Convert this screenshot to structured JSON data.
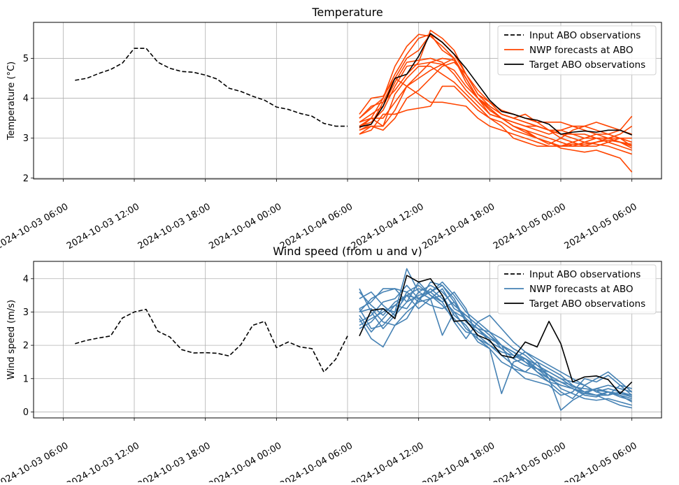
{
  "chart_data": [
    {
      "type": "line",
      "title": "Temperature",
      "xlabel": "",
      "ylabel": "Temperature (°C)",
      "ylim": [
        1.98,
        5.9
      ],
      "yticks": [
        2,
        3,
        4,
        5
      ],
      "xlim": [
        "2024-10-03 03:30",
        "2024-10-05 08:30"
      ],
      "xticks": [
        "2024-10-03 06:00",
        "2024-10-03 12:00",
        "2024-10-03 18:00",
        "2024-10-04 00:00",
        "2024-10-04 06:00",
        "2024-10-04 12:00",
        "2024-10-04 18:00",
        "2024-10-05 00:00",
        "2024-10-05 06:00"
      ],
      "grid": true,
      "legend_position": "top-right",
      "legend": [
        "Input ABO observations",
        "NWP forecasts at ABO",
        "Target ABO observations"
      ],
      "colors": {
        "input": "#000000",
        "nwp": "#ff4500",
        "target": "#000000"
      },
      "input": {
        "name": "Input ABO observations",
        "x": [
          "2024-10-03 07:00",
          "2024-10-03 08:00",
          "2024-10-03 09:00",
          "2024-10-03 10:00",
          "2024-10-03 11:00",
          "2024-10-03 12:00",
          "2024-10-03 13:00",
          "2024-10-03 14:00",
          "2024-10-03 15:00",
          "2024-10-03 16:00",
          "2024-10-03 17:00",
          "2024-10-03 18:00",
          "2024-10-03 19:00",
          "2024-10-03 20:00",
          "2024-10-03 21:00",
          "2024-10-03 22:00",
          "2024-10-03 23:00",
          "2024-10-04 00:00",
          "2024-10-04 01:00",
          "2024-10-04 02:00",
          "2024-10-04 03:00",
          "2024-10-04 04:00",
          "2024-10-04 05:00",
          "2024-10-04 06:00"
        ],
        "y": [
          4.45,
          4.5,
          4.62,
          4.72,
          4.88,
          5.25,
          5.25,
          4.9,
          4.75,
          4.67,
          4.65,
          4.58,
          4.48,
          4.25,
          4.17,
          4.05,
          3.95,
          3.78,
          3.72,
          3.62,
          3.55,
          3.37,
          3.3,
          3.3
        ]
      },
      "target": {
        "name": "Target ABO observations",
        "x": [
          "2024-10-04 07:00",
          "2024-10-04 08:00",
          "2024-10-04 09:00",
          "2024-10-04 10:00",
          "2024-10-04 11:00",
          "2024-10-04 12:00",
          "2024-10-04 13:00",
          "2024-10-04 14:00",
          "2024-10-04 15:00",
          "2024-10-04 16:00",
          "2024-10-04 17:00",
          "2024-10-04 18:00",
          "2024-10-04 19:00",
          "2024-10-04 20:00",
          "2024-10-04 21:00",
          "2024-10-04 22:00",
          "2024-10-04 23:00",
          "2024-10-05 00:00",
          "2024-10-05 01:00",
          "2024-10-05 02:00",
          "2024-10-05 03:00",
          "2024-10-05 04:00",
          "2024-10-05 05:00",
          "2024-10-05 06:00"
        ],
        "y": [
          3.28,
          3.35,
          3.8,
          4.5,
          4.6,
          5.05,
          5.62,
          5.4,
          5.1,
          4.75,
          4.35,
          3.95,
          3.67,
          3.6,
          3.5,
          3.45,
          3.35,
          3.1,
          3.15,
          3.18,
          3.15,
          3.2,
          3.2,
          3.08
        ]
      },
      "nwp": [
        [
          3.2,
          3.35,
          3.9,
          4.5,
          5.0,
          5.2,
          5.6,
          5.2,
          5.0,
          4.5,
          4.0,
          3.6,
          3.5,
          3.4,
          3.3,
          3.3,
          3.2,
          3.1,
          3.1,
          3.0,
          3.0,
          2.9,
          2.8,
          2.7
        ],
        [
          3.5,
          3.8,
          3.9,
          4.2,
          4.6,
          4.9,
          5.7,
          5.5,
          5.2,
          4.6,
          4.1,
          3.9,
          3.6,
          3.5,
          3.4,
          3.3,
          3.2,
          3.2,
          3.1,
          3.1,
          3.0,
          3.0,
          2.9,
          2.8
        ],
        [
          3.1,
          3.2,
          3.6,
          3.6,
          3.7,
          3.75,
          3.8,
          4.3,
          4.3,
          4.0,
          3.7,
          3.5,
          3.4,
          3.2,
          3.1,
          3.0,
          2.9,
          2.8,
          2.8,
          2.9,
          3.0,
          3.0,
          2.9,
          2.75
        ],
        [
          3.6,
          4.0,
          4.05,
          4.5,
          4.3,
          4.1,
          3.9,
          3.9,
          3.85,
          3.8,
          3.5,
          3.3,
          3.2,
          3.1,
          3.0,
          2.9,
          2.8,
          2.8,
          2.9,
          3.0,
          3.1,
          3.1,
          3.2,
          3.1
        ],
        [
          3.25,
          3.5,
          4.0,
          4.8,
          5.3,
          5.6,
          5.55,
          5.3,
          5.0,
          4.5,
          4.0,
          3.75,
          3.5,
          3.3,
          3.15,
          3.0,
          2.9,
          2.75,
          2.7,
          2.65,
          2.7,
          2.6,
          2.5,
          2.15
        ],
        [
          3.3,
          3.4,
          3.7,
          4.3,
          4.8,
          4.85,
          4.9,
          4.85,
          4.7,
          4.3,
          4.0,
          3.8,
          3.6,
          3.5,
          3.4,
          3.3,
          3.2,
          3.1,
          3.0,
          2.9,
          2.85,
          2.8,
          2.7,
          2.6
        ],
        [
          3.4,
          3.6,
          3.8,
          4.4,
          4.9,
          4.95,
          5.0,
          4.9,
          4.6,
          4.2,
          3.9,
          3.6,
          3.5,
          3.4,
          3.3,
          3.2,
          3.1,
          3.2,
          3.3,
          3.2,
          3.1,
          3.0,
          3.0,
          2.9
        ],
        [
          3.2,
          3.3,
          3.2,
          3.5,
          4.0,
          4.2,
          4.5,
          4.8,
          4.9,
          4.6,
          4.2,
          3.9,
          3.7,
          3.6,
          3.5,
          3.4,
          3.4,
          3.4,
          3.3,
          3.3,
          3.2,
          3.1,
          3.0,
          3.0
        ],
        [
          3.5,
          3.75,
          4.0,
          4.6,
          5.1,
          5.5,
          5.6,
          5.4,
          5.1,
          4.6,
          4.1,
          3.8,
          3.6,
          3.5,
          3.6,
          3.4,
          3.2,
          3.0,
          2.9,
          2.8,
          2.9,
          3.0,
          3.1,
          3.3
        ],
        [
          3.3,
          3.5,
          3.3,
          3.7,
          4.3,
          4.6,
          4.9,
          5.0,
          4.95,
          4.5,
          4.0,
          3.7,
          3.5,
          3.3,
          3.2,
          3.1,
          3.0,
          2.9,
          2.8,
          2.8,
          2.8,
          2.9,
          3.0,
          2.8
        ],
        [
          3.1,
          3.3,
          3.3,
          4.1,
          4.5,
          4.8,
          4.8,
          4.6,
          4.4,
          4.1,
          3.8,
          3.5,
          3.3,
          3.0,
          2.9,
          2.8,
          2.8,
          2.8,
          2.85,
          2.85,
          2.9,
          2.95,
          2.9,
          2.85
        ],
        [
          3.4,
          3.5,
          3.5,
          3.9,
          4.3,
          4.5,
          4.7,
          4.85,
          5.0,
          4.4,
          4.0,
          3.7,
          3.5,
          3.3,
          3.2,
          3.0,
          2.85,
          3.0,
          3.2,
          3.3,
          3.4,
          3.3,
          3.2,
          3.55
        ]
      ]
    },
    {
      "type": "line",
      "title": "Wind speed (from u and v)",
      "xlabel": "",
      "ylabel": "Wind speed (m/s)",
      "ylim": [
        -0.18,
        4.52
      ],
      "yticks": [
        0,
        1,
        2,
        3,
        4
      ],
      "xlim": [
        "2024-10-03 03:30",
        "2024-10-05 08:30"
      ],
      "xticks": [
        "2024-10-03 06:00",
        "2024-10-03 12:00",
        "2024-10-03 18:00",
        "2024-10-04 00:00",
        "2024-10-04 06:00",
        "2024-10-04 12:00",
        "2024-10-04 18:00",
        "2024-10-05 00:00",
        "2024-10-05 06:00"
      ],
      "grid": true,
      "legend_position": "top-right",
      "legend": [
        "Input ABO observations",
        "NWP forecasts at ABO",
        "Target ABO observations"
      ],
      "colors": {
        "input": "#000000",
        "nwp": "#4682b4",
        "target": "#000000"
      },
      "input": {
        "name": "Input ABO observations",
        "x": [
          "2024-10-03 07:00",
          "2024-10-03 08:00",
          "2024-10-03 09:00",
          "2024-10-03 10:00",
          "2024-10-03 11:00",
          "2024-10-03 12:00",
          "2024-10-03 13:00",
          "2024-10-03 14:00",
          "2024-10-03 15:00",
          "2024-10-03 16:00",
          "2024-10-03 17:00",
          "2024-10-03 18:00",
          "2024-10-03 19:00",
          "2024-10-03 20:00",
          "2024-10-03 21:00",
          "2024-10-03 22:00",
          "2024-10-03 23:00",
          "2024-10-04 00:00",
          "2024-10-04 01:00",
          "2024-10-04 02:00",
          "2024-10-04 03:00",
          "2024-10-04 04:00",
          "2024-10-04 05:00",
          "2024-10-04 06:00"
        ],
        "y": [
          2.05,
          2.15,
          2.22,
          2.28,
          2.82,
          3.0,
          3.08,
          2.42,
          2.25,
          1.87,
          1.77,
          1.78,
          1.76,
          1.68,
          2.02,
          2.6,
          2.72,
          1.93,
          2.1,
          1.95,
          1.9,
          1.2,
          1.58,
          2.28
        ]
      },
      "target": {
        "name": "Target ABO observations",
        "x": [
          "2024-10-04 07:00",
          "2024-10-04 08:00",
          "2024-10-04 09:00",
          "2024-10-04 10:00",
          "2024-10-04 11:00",
          "2024-10-04 12:00",
          "2024-10-04 13:00",
          "2024-10-04 14:00",
          "2024-10-04 15:00",
          "2024-10-04 16:00",
          "2024-10-04 17:00",
          "2024-10-04 18:00",
          "2024-10-04 19:00",
          "2024-10-04 20:00",
          "2024-10-04 21:00",
          "2024-10-04 22:00",
          "2024-10-04 23:00",
          "2024-10-05 00:00",
          "2024-10-05 01:00",
          "2024-10-05 02:00",
          "2024-10-05 03:00",
          "2024-10-05 04:00",
          "2024-10-05 05:00",
          "2024-10-05 06:00"
        ],
        "y": [
          2.28,
          3.05,
          3.1,
          2.8,
          4.1,
          3.9,
          4.0,
          3.5,
          2.72,
          2.75,
          2.3,
          2.15,
          1.7,
          1.62,
          2.1,
          1.95,
          2.72,
          2.05,
          0.9,
          1.05,
          1.08,
          0.97,
          0.55,
          0.9
        ]
      },
      "nwp": [
        [
          3.6,
          3.2,
          2.9,
          3.3,
          3.5,
          3.4,
          3.7,
          3.4,
          3.0,
          2.5,
          2.2,
          1.9,
          1.5,
          1.3,
          1.2,
          1.1,
          0.9,
          0.8,
          0.7,
          0.6,
          0.7,
          0.6,
          0.5,
          0.4
        ],
        [
          3.7,
          3.0,
          2.5,
          2.9,
          3.6,
          3.8,
          3.5,
          3.2,
          2.8,
          2.4,
          2.3,
          2.0,
          1.8,
          1.7,
          1.6,
          1.3,
          1.2,
          1.0,
          0.9,
          0.8,
          0.6,
          0.7,
          0.6,
          0.5
        ],
        [
          3.1,
          3.3,
          3.7,
          3.7,
          3.6,
          3.3,
          3.4,
          3.5,
          2.9,
          2.6,
          2.1,
          1.9,
          0.55,
          1.5,
          1.6,
          1.2,
          1.0,
          0.8,
          0.7,
          0.5,
          0.45,
          0.6,
          0.5,
          0.3
        ],
        [
          2.5,
          2.7,
          3.1,
          3.0,
          4.3,
          3.6,
          3.4,
          2.3,
          3.0,
          2.8,
          2.5,
          2.1,
          1.9,
          1.6,
          1.4,
          1.3,
          1.0,
          0.05,
          0.35,
          0.55,
          0.7,
          0.8,
          0.7,
          0.6
        ],
        [
          2.9,
          2.4,
          2.8,
          3.2,
          3.1,
          3.6,
          3.8,
          3.6,
          3.2,
          2.9,
          2.6,
          2.3,
          2.0,
          1.3,
          1.0,
          0.9,
          0.8,
          0.5,
          0.6,
          1.0,
          0.9,
          1.1,
          0.8,
          0.7
        ],
        [
          3.0,
          3.4,
          3.6,
          3.7,
          3.3,
          3.5,
          3.6,
          3.3,
          2.7,
          2.2,
          2.7,
          2.9,
          2.5,
          2.1,
          1.8,
          1.6,
          1.4,
          1.2,
          1.0,
          0.8,
          0.6,
          0.5,
          0.6,
          0.45
        ],
        [
          2.7,
          2.9,
          3.3,
          3.4,
          3.8,
          3.4,
          3.2,
          3.1,
          3.3,
          2.8,
          2.5,
          2.2,
          2.0,
          1.8,
          1.5,
          1.3,
          1.1,
          0.7,
          0.55,
          0.4,
          0.35,
          0.4,
          0.3,
          0.2
        ],
        [
          3.1,
          2.5,
          2.6,
          3.0,
          3.5,
          3.7,
          3.6,
          3.9,
          3.5,
          3.0,
          2.7,
          2.4,
          2.2,
          1.9,
          1.7,
          1.4,
          1.1,
          0.9,
          0.7,
          0.55,
          0.5,
          0.6,
          0.45,
          0.35
        ],
        [
          2.8,
          2.2,
          1.95,
          2.6,
          3.0,
          3.3,
          3.9,
          3.8,
          3.4,
          2.7,
          2.4,
          2.2,
          2.0,
          1.7,
          1.5,
          1.2,
          0.9,
          0.6,
          0.4,
          0.8,
          1.0,
          1.2,
          0.9,
          0.6
        ],
        [
          2.6,
          2.8,
          3.0,
          3.2,
          3.5,
          3.1,
          3.4,
          3.7,
          3.1,
          2.9,
          2.6,
          2.3,
          1.9,
          1.6,
          1.8,
          1.5,
          1.3,
          1.1,
          0.8,
          0.6,
          0.5,
          0.35,
          0.2,
          0.12
        ],
        [
          3.4,
          3.6,
          3.2,
          2.9,
          3.3,
          3.9,
          3.5,
          3.3,
          3.6,
          3.1,
          2.2,
          2.0,
          1.7,
          1.4,
          1.2,
          1.5,
          1.0,
          0.9,
          0.8,
          0.6,
          0.5,
          0.5,
          0.8,
          0.5
        ],
        [
          3.0,
          3.1,
          2.7,
          2.6,
          2.8,
          3.4,
          3.6,
          3.8,
          3.3,
          2.7,
          2.5,
          2.4,
          2.0,
          1.8,
          1.6,
          1.4,
          1.2,
          1.0,
          0.75,
          0.7,
          0.65,
          0.6,
          0.55,
          0.45
        ]
      ]
    }
  ]
}
